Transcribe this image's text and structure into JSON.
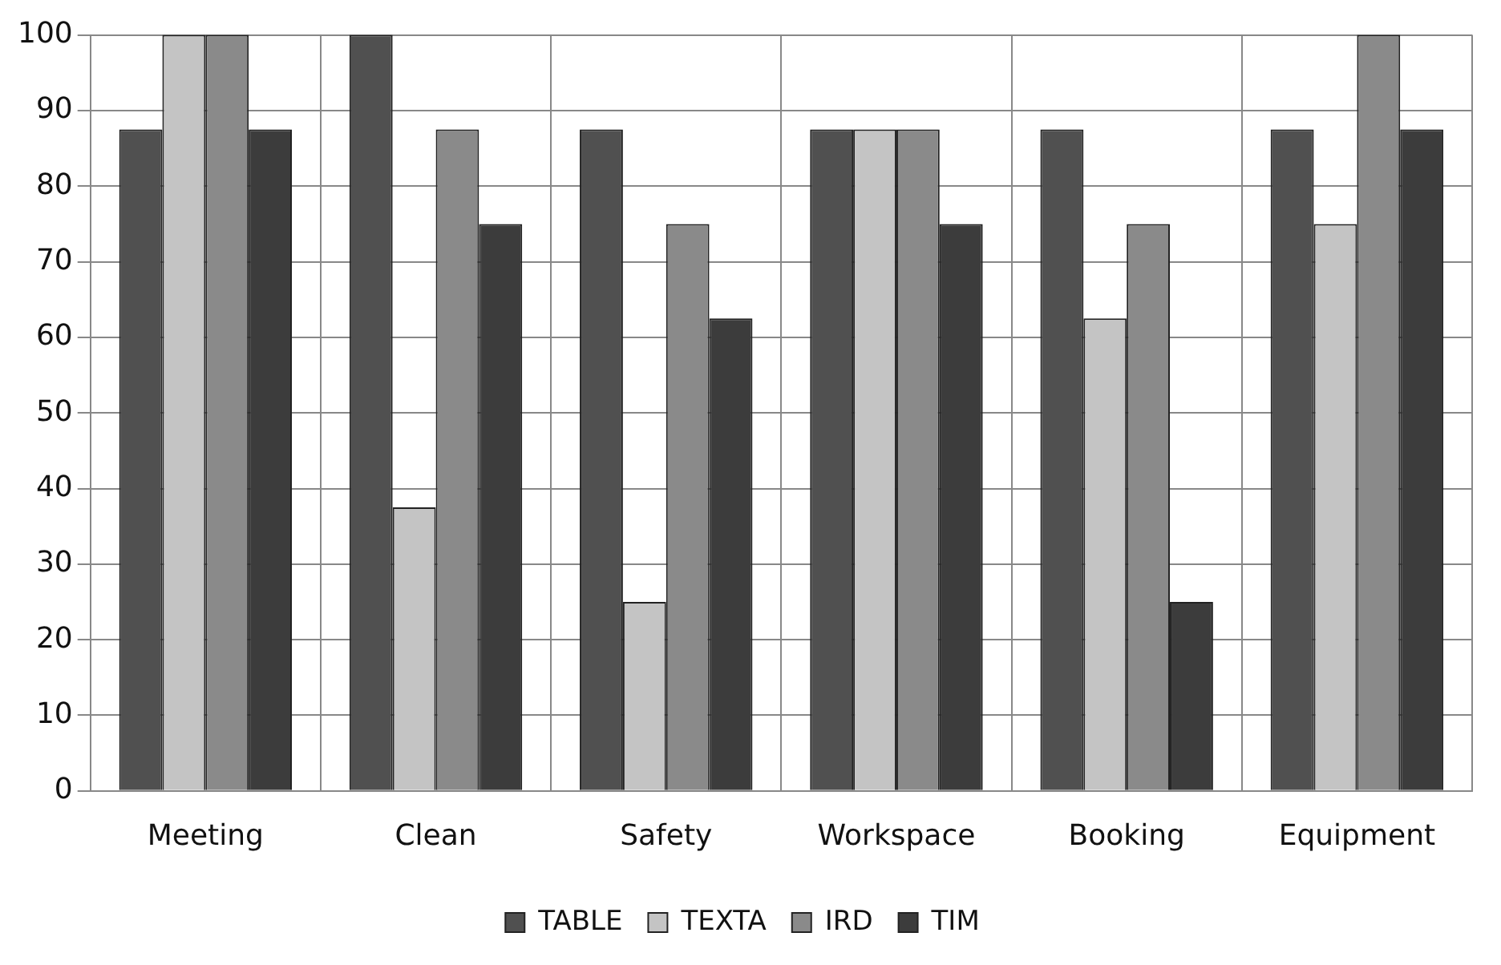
{
  "chart_data": {
    "type": "bar",
    "categories": [
      "Meeting",
      "Clean",
      "Safety",
      "Workspace",
      "Booking",
      "Equipment"
    ],
    "series": [
      {
        "name": "TABLE",
        "color": "#505050",
        "values": [
          87.5,
          100,
          87.5,
          87.5,
          87.5,
          87.5
        ]
      },
      {
        "name": "TEXTA",
        "color": "#c4c4c4",
        "values": [
          100,
          37.5,
          25,
          87.5,
          62.5,
          75
        ]
      },
      {
        "name": "IRD",
        "color": "#8a8a8a",
        "values": [
          100,
          87.5,
          75,
          87.5,
          75,
          100
        ]
      },
      {
        "name": "TIM",
        "color": "#3c3c3c",
        "values": [
          87.5,
          75,
          62.5,
          75,
          25,
          87.5
        ]
      }
    ],
    "ylim": [
      0,
      100
    ],
    "yticks": [
      0,
      10,
      20,
      30,
      40,
      50,
      60,
      70,
      80,
      90,
      100
    ],
    "grid": true,
    "legend": "bottom"
  }
}
